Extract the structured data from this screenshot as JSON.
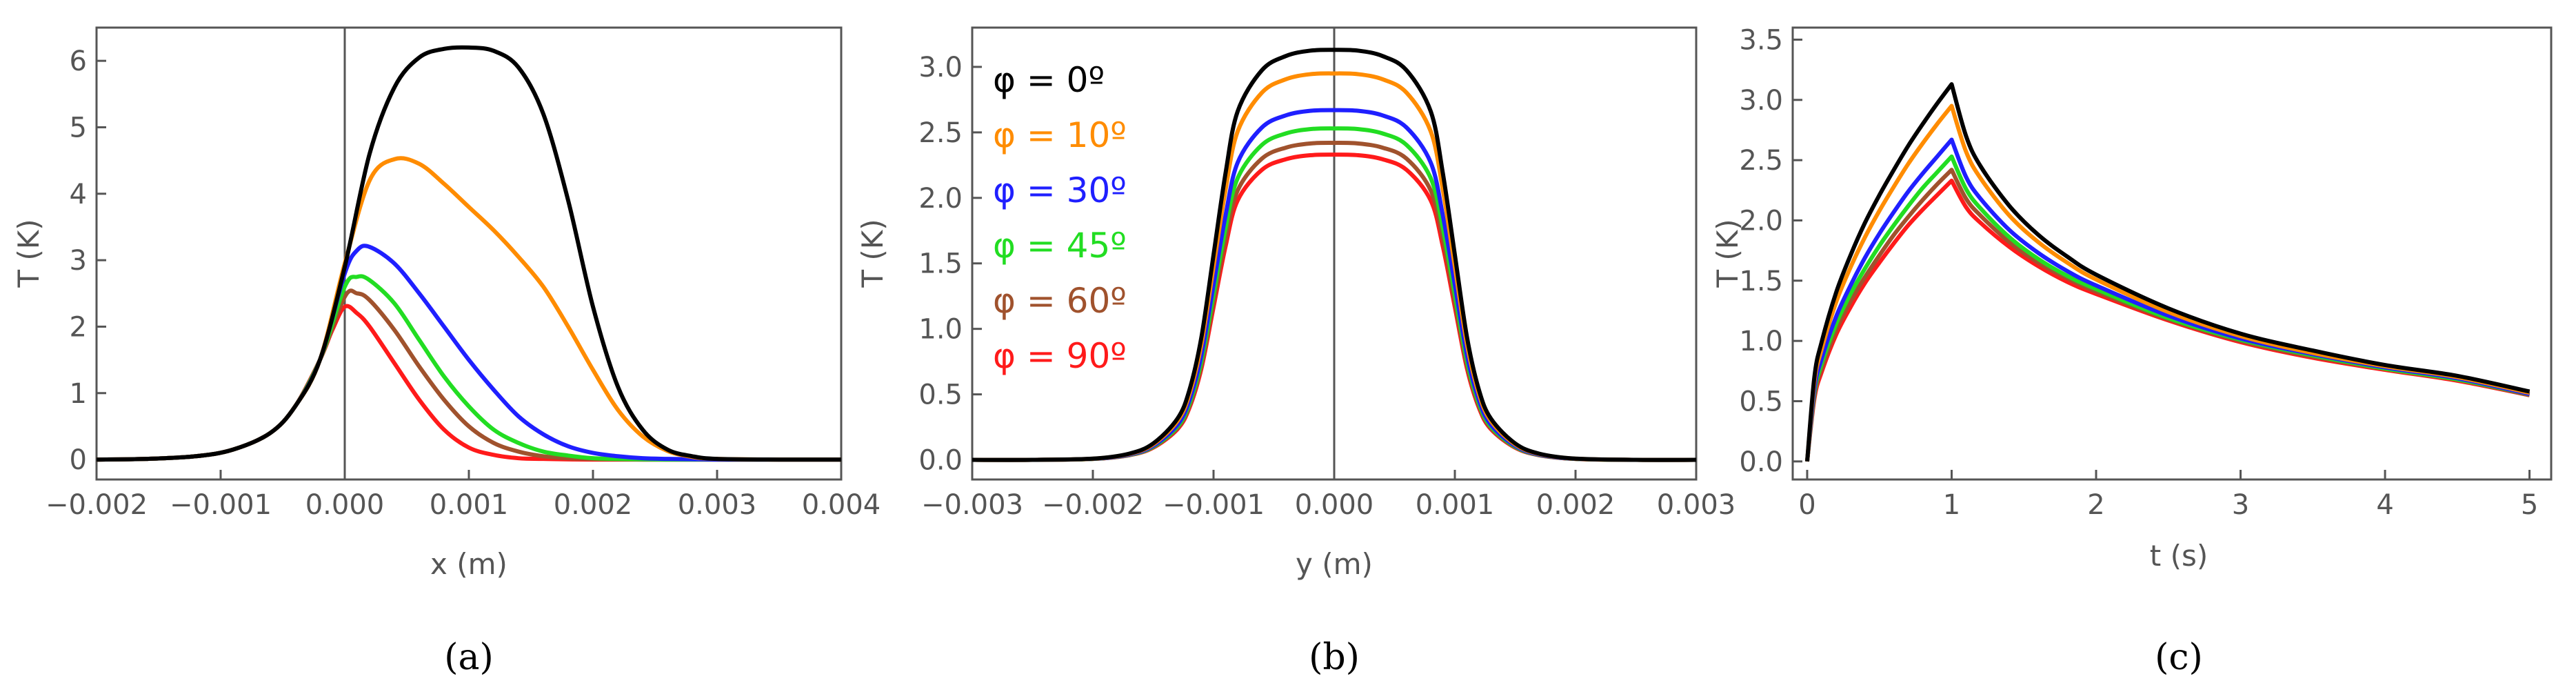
{
  "colors": {
    "phi0": "#000000",
    "phi10": "#ff8c00",
    "phi30": "#1f1fff",
    "phi45": "#22dd22",
    "phi60": "#a0522d",
    "phi90": "#ff1a1a",
    "axis": "#555555",
    "tick_text": "#555555"
  },
  "legend": [
    "φ = 0º",
    "φ = 10º",
    "φ = 30º",
    "φ = 45º",
    "φ = 60º",
    "φ = 90º"
  ],
  "chart_data": [
    {
      "id": "a",
      "type": "line",
      "caption": "(a)",
      "xlabel": "x (m)",
      "ylabel": "T (K)",
      "xlim": [
        -0.002,
        0.004
      ],
      "ylim": [
        -0.3,
        6.5
      ],
      "xticks": [
        -0.002,
        -0.001,
        0.0,
        0.001,
        0.002,
        0.003,
        0.004
      ],
      "xtick_labels": [
        "−0.002",
        "−0.001",
        "0.000",
        "0.001",
        "0.002",
        "0.003",
        "0.004"
      ],
      "yticks": [
        0,
        1,
        2,
        3,
        4,
        5,
        6
      ],
      "ytick_labels": [
        "0",
        "1",
        "2",
        "3",
        "4",
        "5",
        "6"
      ],
      "vline": 0.0,
      "series": [
        {
          "name": "φ = 0º",
          "x": [
            -0.002,
            -0.0016,
            -0.0012,
            -0.0009,
            -0.0006,
            -0.0004,
            -0.0002,
            0.0,
            0.0002,
            0.0004,
            0.0006,
            0.0008,
            0.001,
            0.0012,
            0.0014,
            0.0016,
            0.0018,
            0.002,
            0.0022,
            0.0024,
            0.0026,
            0.0028,
            0.003,
            0.0035,
            0.004
          ],
          "y": [
            0,
            0.01,
            0.05,
            0.15,
            0.4,
            0.8,
            1.5,
            2.9,
            4.6,
            5.6,
            6.05,
            6.18,
            6.2,
            6.15,
            5.9,
            5.2,
            3.9,
            2.3,
            1.1,
            0.45,
            0.15,
            0.05,
            0.01,
            0,
            0
          ]
        },
        {
          "name": "φ = 10º",
          "x": [
            -0.002,
            -0.0016,
            -0.0012,
            -0.0009,
            -0.0006,
            -0.0004,
            -0.0002,
            0.0,
            0.0002,
            0.0004,
            0.0006,
            0.0008,
            0.001,
            0.0012,
            0.0014,
            0.0016,
            0.0018,
            0.002,
            0.0022,
            0.0024,
            0.0026,
            0.0028,
            0.003,
            0.0035,
            0.004
          ],
          "y": [
            0,
            0.01,
            0.05,
            0.15,
            0.4,
            0.8,
            1.5,
            2.95,
            4.2,
            4.52,
            4.45,
            4.15,
            3.8,
            3.45,
            3.05,
            2.6,
            2.0,
            1.35,
            0.75,
            0.35,
            0.13,
            0.04,
            0.01,
            0,
            0
          ]
        },
        {
          "name": "φ = 30º",
          "x": [
            -0.002,
            -0.0016,
            -0.0012,
            -0.0009,
            -0.0006,
            -0.0004,
            -0.0002,
            0.0,
            0.0001,
            0.0002,
            0.0004,
            0.0006,
            0.0008,
            0.001,
            0.0012,
            0.0014,
            0.0016,
            0.0018,
            0.002,
            0.0022,
            0.0024,
            0.0026,
            0.003,
            0.0035,
            0.004
          ],
          "y": [
            0,
            0.01,
            0.05,
            0.15,
            0.4,
            0.8,
            1.5,
            2.8,
            3.15,
            3.2,
            2.95,
            2.5,
            2.0,
            1.5,
            1.05,
            0.65,
            0.38,
            0.2,
            0.1,
            0.05,
            0.02,
            0.01,
            0,
            0,
            0
          ]
        },
        {
          "name": "φ = 45º",
          "x": [
            -0.002,
            -0.0016,
            -0.0012,
            -0.0009,
            -0.0006,
            -0.0004,
            -0.0002,
            0.0,
            0.0001,
            0.0002,
            0.0004,
            0.0006,
            0.0008,
            0.001,
            0.0012,
            0.0014,
            0.0016,
            0.0018,
            0.002,
            0.0022,
            0.0026,
            0.003,
            0.0035,
            0.004
          ],
          "y": [
            0,
            0.01,
            0.05,
            0.15,
            0.4,
            0.8,
            1.5,
            2.6,
            2.75,
            2.7,
            2.35,
            1.8,
            1.25,
            0.8,
            0.45,
            0.25,
            0.12,
            0.06,
            0.02,
            0.01,
            0,
            0,
            0,
            0
          ]
        },
        {
          "name": "φ = 60º",
          "x": [
            -0.002,
            -0.0016,
            -0.0012,
            -0.0009,
            -0.0006,
            -0.0004,
            -0.0002,
            0.0,
            0.0001,
            0.0002,
            0.0004,
            0.0006,
            0.0008,
            0.001,
            0.0012,
            0.0014,
            0.0016,
            0.0018,
            0.002,
            0.0024,
            0.003,
            0.0035,
            0.004
          ],
          "y": [
            0,
            0.01,
            0.05,
            0.15,
            0.4,
            0.8,
            1.5,
            2.45,
            2.5,
            2.4,
            1.95,
            1.4,
            0.9,
            0.5,
            0.25,
            0.12,
            0.05,
            0.02,
            0.01,
            0,
            0,
            0,
            0
          ]
        },
        {
          "name": "φ = 90º",
          "x": [
            -0.002,
            -0.0016,
            -0.0012,
            -0.0009,
            -0.0006,
            -0.0004,
            -0.0002,
            -0.0001,
            0.0,
            0.0001,
            0.0002,
            0.0004,
            0.0006,
            0.0008,
            0.001,
            0.0012,
            0.0014,
            0.0016,
            0.002,
            0.003,
            0.004
          ],
          "y": [
            0,
            0.01,
            0.05,
            0.15,
            0.4,
            0.8,
            1.5,
            1.95,
            2.3,
            2.2,
            2.0,
            1.45,
            0.9,
            0.45,
            0.18,
            0.07,
            0.02,
            0.01,
            0,
            0,
            0
          ]
        }
      ]
    },
    {
      "id": "b",
      "type": "line",
      "caption": "(b)",
      "xlabel": "y (m)",
      "ylabel": "T (K)",
      "xlim": [
        -0.003,
        0.003
      ],
      "ylim": [
        -0.15,
        3.3
      ],
      "xticks": [
        -0.003,
        -0.002,
        -0.001,
        0.0,
        0.001,
        0.002,
        0.003
      ],
      "xtick_labels": [
        "−0.003",
        "−0.002",
        "−0.001",
        "0.000",
        "0.001",
        "0.002",
        "0.003"
      ],
      "yticks": [
        0.0,
        0.5,
        1.0,
        1.5,
        2.0,
        2.5,
        3.0
      ],
      "ytick_labels": [
        "0.0",
        "0.5",
        "1.0",
        "1.5",
        "2.0",
        "2.5",
        "3.0"
      ],
      "vline": 0.0,
      "profile_x": [
        -0.003,
        -0.0025,
        -0.002,
        -0.0017,
        -0.0015,
        -0.0013,
        -0.0012,
        -0.0011,
        -0.001,
        -0.0009,
        -0.0008,
        -0.0006,
        -0.0004,
        -0.0002,
        0.0,
        0.0002,
        0.0004,
        0.0006,
        0.0008,
        0.0009,
        0.001,
        0.0011,
        0.0012,
        0.0013,
        0.0015,
        0.0017,
        0.002,
        0.0025,
        0.003
      ],
      "profile_shape": [
        0,
        0,
        0.003,
        0.015,
        0.04,
        0.1,
        0.17,
        0.3,
        0.5,
        0.7,
        0.85,
        0.95,
        0.985,
        0.998,
        1,
        0.998,
        0.985,
        0.95,
        0.85,
        0.7,
        0.5,
        0.3,
        0.17,
        0.1,
        0.04,
        0.015,
        0.003,
        0,
        0
      ],
      "series": [
        {
          "name": "φ = 0º",
          "peak": 3.13
        },
        {
          "name": "φ = 10º",
          "peak": 2.95
        },
        {
          "name": "φ = 30º",
          "peak": 2.67
        },
        {
          "name": "φ = 45º",
          "peak": 2.53
        },
        {
          "name": "φ = 60º",
          "peak": 2.42
        },
        {
          "name": "φ = 90º",
          "peak": 2.33
        }
      ]
    },
    {
      "id": "c",
      "type": "line",
      "caption": "(c)",
      "xlabel": "t (s)",
      "ylabel": "T (K)",
      "xlim": [
        -0.1,
        5.15
      ],
      "ylim": [
        -0.15,
        3.6
      ],
      "xticks": [
        0,
        1,
        2,
        3,
        4,
        5
      ],
      "xtick_labels": [
        "0",
        "1",
        "2",
        "3",
        "4",
        "5"
      ],
      "yticks": [
        0.0,
        0.5,
        1.0,
        1.5,
        2.0,
        2.5,
        3.0,
        3.5
      ],
      "ytick_labels": [
        "0.0",
        "0.5",
        "1.0",
        "1.5",
        "2.0",
        "2.5",
        "3.0",
        "3.5"
      ],
      "series": [
        {
          "name": "φ = 0º",
          "t": [
            0,
            0.05,
            0.1,
            0.2,
            0.3,
            0.4,
            0.5,
            0.6,
            0.7,
            0.8,
            0.9,
            1.0,
            1.1,
            1.2,
            1.4,
            1.6,
            1.8,
            2.0,
            2.5,
            3.0,
            3.5,
            4.0,
            4.5,
            5.0
          ],
          "T": [
            0,
            0.7,
            0.99,
            1.4,
            1.71,
            1.98,
            2.21,
            2.42,
            2.62,
            2.8,
            2.97,
            3.13,
            2.7,
            2.45,
            2.12,
            1.88,
            1.7,
            1.55,
            1.27,
            1.06,
            0.92,
            0.8,
            0.71,
            0.58
          ]
        },
        {
          "name": "φ = 10º",
          "t": [
            0,
            0.05,
            0.1,
            0.2,
            0.3,
            0.4,
            0.5,
            0.6,
            0.7,
            0.8,
            0.9,
            1.0,
            1.1,
            1.2,
            1.4,
            1.6,
            1.8,
            2.0,
            2.5,
            3.0,
            3.5,
            4.0,
            4.5,
            5.0
          ],
          "T": [
            0,
            0.66,
            0.93,
            1.32,
            1.61,
            1.86,
            2.08,
            2.28,
            2.47,
            2.64,
            2.8,
            2.95,
            2.57,
            2.35,
            2.04,
            1.82,
            1.65,
            1.51,
            1.24,
            1.04,
            0.9,
            0.79,
            0.7,
            0.57
          ]
        },
        {
          "name": "φ = 30º",
          "t": [
            0,
            0.05,
            0.1,
            0.2,
            0.3,
            0.4,
            0.5,
            0.6,
            0.7,
            0.8,
            0.9,
            1.0,
            1.1,
            1.2,
            1.4,
            1.6,
            1.8,
            2.0,
            2.5,
            3.0,
            3.5,
            4.0,
            4.5,
            5.0
          ],
          "T": [
            0,
            0.6,
            0.85,
            1.2,
            1.46,
            1.69,
            1.89,
            2.07,
            2.24,
            2.39,
            2.53,
            2.67,
            2.36,
            2.18,
            1.92,
            1.73,
            1.58,
            1.46,
            1.21,
            1.02,
            0.89,
            0.78,
            0.69,
            0.56
          ]
        },
        {
          "name": "φ = 45º",
          "t": [
            0,
            0.05,
            0.1,
            0.2,
            0.3,
            0.4,
            0.5,
            0.6,
            0.7,
            0.8,
            0.9,
            1.0,
            1.1,
            1.2,
            1.4,
            1.6,
            1.8,
            2.0,
            2.5,
            3.0,
            3.5,
            4.0,
            4.5,
            5.0
          ],
          "T": [
            0,
            0.57,
            0.81,
            1.14,
            1.39,
            1.6,
            1.79,
            1.96,
            2.12,
            2.27,
            2.4,
            2.53,
            2.26,
            2.1,
            1.86,
            1.68,
            1.54,
            1.43,
            1.19,
            1.01,
            0.88,
            0.77,
            0.68,
            0.56
          ]
        },
        {
          "name": "φ = 60º",
          "t": [
            0,
            0.05,
            0.1,
            0.2,
            0.3,
            0.4,
            0.5,
            0.6,
            0.7,
            0.8,
            0.9,
            1.0,
            1.1,
            1.2,
            1.4,
            1.6,
            1.8,
            2.0,
            2.5,
            3.0,
            3.5,
            4.0,
            4.5,
            5.0
          ],
          "T": [
            0,
            0.55,
            0.77,
            1.09,
            1.33,
            1.53,
            1.71,
            1.88,
            2.03,
            2.17,
            2.3,
            2.42,
            2.18,
            2.04,
            1.82,
            1.65,
            1.52,
            1.41,
            1.18,
            1.0,
            0.87,
            0.77,
            0.68,
            0.55
          ]
        },
        {
          "name": "φ = 90º",
          "t": [
            0,
            0.05,
            0.1,
            0.2,
            0.3,
            0.4,
            0.5,
            0.6,
            0.7,
            0.8,
            0.9,
            1.0,
            1.1,
            1.2,
            1.4,
            1.6,
            1.8,
            2.0,
            2.5,
            3.0,
            3.5,
            4.0,
            4.5,
            5.0
          ],
          "T": [
            0,
            0.52,
            0.74,
            1.05,
            1.28,
            1.48,
            1.65,
            1.81,
            1.96,
            2.09,
            2.21,
            2.33,
            2.11,
            1.98,
            1.78,
            1.62,
            1.49,
            1.39,
            1.17,
            0.99,
            0.86,
            0.76,
            0.67,
            0.55
          ]
        }
      ]
    }
  ]
}
